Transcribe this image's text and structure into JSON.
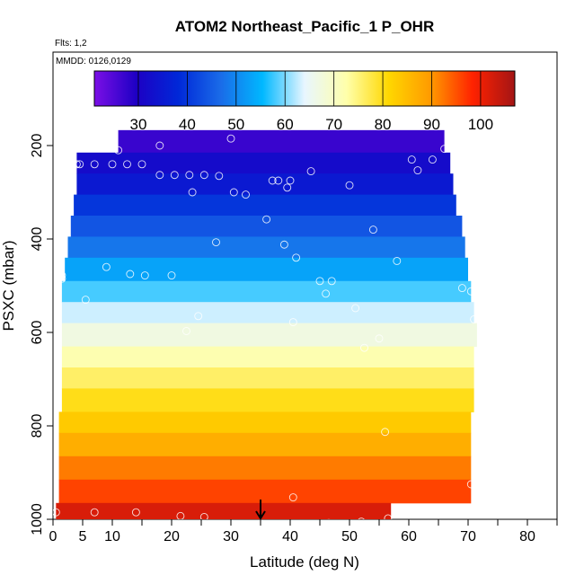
{
  "chart_data": {
    "type": "heatmap",
    "title": "ATOM2 Northeast_Pacific_1 P_OHR",
    "flights_label": "Flts: 1,2",
    "dates_label": "MMDD: 0126,0129",
    "xlabel": "Latitude (deg N)",
    "ylabel": "PSXC (mbar)",
    "xlim": [
      0,
      85
    ],
    "ylim": [
      1000,
      0
    ],
    "x_ticks": [
      0,
      5,
      10,
      20,
      30,
      40,
      50,
      60,
      70,
      80
    ],
    "x_minor_ticks": [
      15,
      25,
      35,
      45,
      55,
      65,
      75,
      85
    ],
    "y_ticks": [
      200,
      400,
      600,
      800,
      1000
    ],
    "colorbar": {
      "min": 21,
      "max": 107,
      "ticks": [
        30,
        40,
        50,
        60,
        70,
        80,
        90,
        100
      ],
      "stops": [
        "#7b0fe6",
        "#1d00c4",
        "#0028d8",
        "#1a6be8",
        "#00b8ff",
        "#e8f6ff",
        "#ffffaa",
        "#ffd700",
        "#ff9a00",
        "#ff2200",
        "#a31515"
      ]
    },
    "bands": [
      {
        "p_top": 167,
        "p_bot": 215,
        "lat_min": 11,
        "lat_max": 66,
        "value": 27
      },
      {
        "p_top": 215,
        "p_bot": 260,
        "lat_min": 4,
        "lat_max": 67,
        "value": 32
      },
      {
        "p_top": 260,
        "p_bot": 305,
        "lat_min": 4,
        "lat_max": 67.5,
        "value": 35
      },
      {
        "p_top": 305,
        "p_bot": 350,
        "lat_min": 3.5,
        "lat_max": 68,
        "value": 40
      },
      {
        "p_top": 350,
        "p_bot": 395,
        "lat_min": 3,
        "lat_max": 69,
        "value": 44
      },
      {
        "p_top": 395,
        "p_bot": 440,
        "lat_min": 2.5,
        "lat_max": 69.5,
        "value": 48
      },
      {
        "p_top": 440,
        "p_bot": 490,
        "lat_min": 2,
        "lat_max": 70,
        "value": 53
      },
      {
        "p_top": 490,
        "p_bot": 535,
        "lat_min": 1.5,
        "lat_max": 70.5,
        "value": 58
      },
      {
        "p_top": 535,
        "p_bot": 580,
        "lat_min": 1.5,
        "lat_max": 71,
        "value": 63
      },
      {
        "p_top": 580,
        "p_bot": 630,
        "lat_min": 1.5,
        "lat_max": 71.5,
        "value": 67
      },
      {
        "p_top": 630,
        "p_bot": 675,
        "lat_min": 1.5,
        "lat_max": 71,
        "value": 72
      },
      {
        "p_top": 675,
        "p_bot": 720,
        "lat_min": 1.5,
        "lat_max": 71,
        "value": 76
      },
      {
        "p_top": 720,
        "p_bot": 770,
        "lat_min": 1.5,
        "lat_max": 71,
        "value": 80
      },
      {
        "p_top": 770,
        "p_bot": 815,
        "lat_min": 1,
        "lat_max": 70.5,
        "value": 83
      },
      {
        "p_top": 815,
        "p_bot": 865,
        "lat_min": 1,
        "lat_max": 70.5,
        "value": 87
      },
      {
        "p_top": 865,
        "p_bot": 915,
        "lat_min": 1,
        "lat_max": 70.5,
        "value": 92
      },
      {
        "p_top": 915,
        "p_bot": 965,
        "lat_min": 1,
        "lat_max": 70.5,
        "value": 96
      },
      {
        "p_top": 965,
        "p_bot": 1015,
        "lat_min": 0.5,
        "lat_max": 57,
        "value": 102
      }
    ],
    "points": [
      {
        "x": 11,
        "y": 210
      },
      {
        "x": 18,
        "y": 200
      },
      {
        "x": 30,
        "y": 185
      },
      {
        "x": 66,
        "y": 207
      },
      {
        "x": 4,
        "y": 240
      },
      {
        "x": 4.5,
        "y": 240
      },
      {
        "x": 7,
        "y": 240
      },
      {
        "x": 10,
        "y": 240
      },
      {
        "x": 12.5,
        "y": 240
      },
      {
        "x": 15,
        "y": 240
      },
      {
        "x": 60.5,
        "y": 230
      },
      {
        "x": 64,
        "y": 230
      },
      {
        "x": 18,
        "y": 263
      },
      {
        "x": 20.5,
        "y": 263
      },
      {
        "x": 23,
        "y": 263
      },
      {
        "x": 25.5,
        "y": 263
      },
      {
        "x": 28,
        "y": 265
      },
      {
        "x": 37,
        "y": 275
      },
      {
        "x": 38,
        "y": 275
      },
      {
        "x": 39.5,
        "y": 290
      },
      {
        "x": 40,
        "y": 275
      },
      {
        "x": 43.5,
        "y": 255
      },
      {
        "x": 50,
        "y": 285
      },
      {
        "x": 61.5,
        "y": 253
      },
      {
        "x": 23.5,
        "y": 300
      },
      {
        "x": 30.5,
        "y": 300
      },
      {
        "x": 32.5,
        "y": 305
      },
      {
        "x": 36,
        "y": 358
      },
      {
        "x": 54,
        "y": 380
      },
      {
        "x": 27.5,
        "y": 407
      },
      {
        "x": 39,
        "y": 412
      },
      {
        "x": 41,
        "y": 440
      },
      {
        "x": 58,
        "y": 447
      },
      {
        "x": 9,
        "y": 460
      },
      {
        "x": 1.5,
        "y": 478
      },
      {
        "x": 1.5,
        "y": 485
      },
      {
        "x": 13,
        "y": 475
      },
      {
        "x": 15.5,
        "y": 478
      },
      {
        "x": 20,
        "y": 478
      },
      {
        "x": 45,
        "y": 490
      },
      {
        "x": 47,
        "y": 490
      },
      {
        "x": 5.5,
        "y": 530
      },
      {
        "x": 46,
        "y": 517
      },
      {
        "x": 69,
        "y": 505
      },
      {
        "x": 70.5,
        "y": 512
      },
      {
        "x": 24.5,
        "y": 565
      },
      {
        "x": 51,
        "y": 548
      },
      {
        "x": 22.5,
        "y": 597
      },
      {
        "x": 40.5,
        "y": 578
      },
      {
        "x": 71,
        "y": 572
      },
      {
        "x": 55,
        "y": 613
      },
      {
        "x": 52.5,
        "y": 633
      },
      {
        "x": 56,
        "y": 813
      },
      {
        "x": 70.5,
        "y": 925
      },
      {
        "x": 40.5,
        "y": 953
      },
      {
        "x": 0.5,
        "y": 985
      },
      {
        "x": 7,
        "y": 985
      },
      {
        "x": 14,
        "y": 985
      },
      {
        "x": 21.5,
        "y": 993
      },
      {
        "x": 25.5,
        "y": 995
      },
      {
        "x": 46.5,
        "y": 1008
      },
      {
        "x": 52,
        "y": 1005
      },
      {
        "x": 56.5,
        "y": 998
      }
    ],
    "marker": {
      "x": 35,
      "type": "arrow-down"
    }
  }
}
